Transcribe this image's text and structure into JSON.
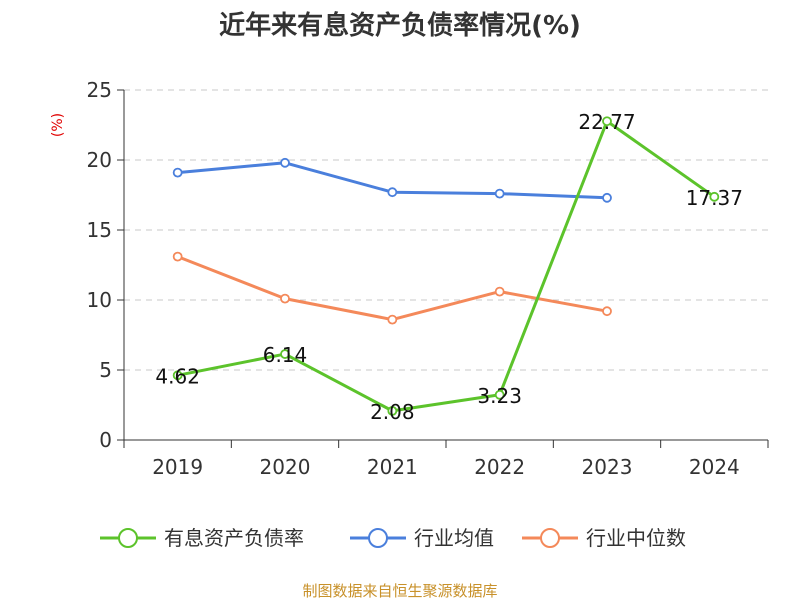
{
  "chart_data": {
    "type": "line",
    "title": "近年来有息资产负债率情况(%)",
    "ylabel": "(%)",
    "xlabel": "",
    "categories": [
      "2019",
      "2020",
      "2021",
      "2022",
      "2023",
      "2024"
    ],
    "ylim": [
      0,
      25
    ],
    "yticks": [
      0,
      5,
      10,
      15,
      20,
      25
    ],
    "grid": true,
    "legend_position": "bottom",
    "series": [
      {
        "name": "有息资产负债率",
        "color": "#5cc32b",
        "values": [
          4.62,
          6.14,
          2.08,
          3.23,
          22.77,
          17.37
        ],
        "data_labels": [
          "4.62",
          "6.14",
          "2.08",
          "3.23",
          "22.77",
          "17.37"
        ]
      },
      {
        "name": "行业均值",
        "color": "#4a7fdc",
        "values": [
          19.1,
          19.8,
          17.7,
          17.6,
          17.3,
          null
        ]
      },
      {
        "name": "行业中位数",
        "color": "#f4895a",
        "values": [
          13.1,
          10.1,
          8.6,
          10.6,
          9.2,
          null
        ]
      }
    ],
    "source": "制图数据来自恒生聚源数据库"
  }
}
